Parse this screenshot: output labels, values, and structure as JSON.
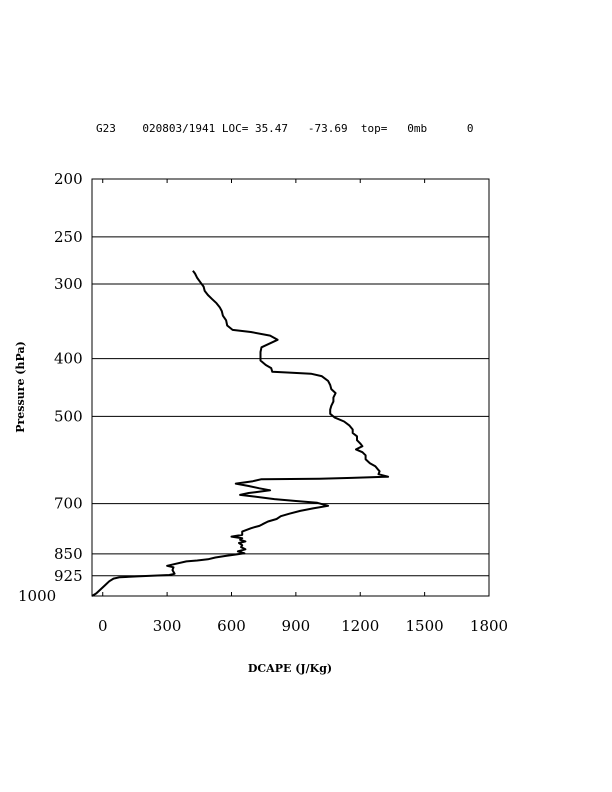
{
  "chart_data": {
    "type": "line",
    "title": "G23    020803/1941 LOC= 35.47   -73.69  top=   0mb      0",
    "xlabel": "DCAPE (J/Kg)",
    "ylabel": "Pressure (hPa)",
    "xlim": [
      -50,
      1800
    ],
    "ylim": [
      1000,
      200
    ],
    "y_scale": "log",
    "x_ticks": [
      "0",
      "300",
      "600",
      "900",
      "1200",
      "1500",
      "1800"
    ],
    "x_tick_values": [
      0,
      300,
      600,
      900,
      1200,
      1500,
      1800
    ],
    "y_ticks": [
      "200",
      "250",
      "300",
      "400",
      "500",
      "700",
      "850",
      "925",
      "1000"
    ],
    "y_tick_values": [
      200,
      250,
      300,
      400,
      500,
      700,
      850,
      925,
      1000
    ],
    "grid": "horizontal",
    "series": [
      {
        "color": "#000000",
        "points": [
          [
            -50,
            1000
          ],
          [
            -30,
            990
          ],
          [
            -10,
            975
          ],
          [
            10,
            960
          ],
          [
            30,
            945
          ],
          [
            50,
            935
          ],
          [
            80,
            930
          ],
          [
            160,
            927
          ],
          [
            310,
            922
          ],
          [
            335,
            918
          ],
          [
            325,
            905
          ],
          [
            330,
            895
          ],
          [
            300,
            890
          ],
          [
            330,
            885
          ],
          [
            390,
            875
          ],
          [
            440,
            872
          ],
          [
            490,
            868
          ],
          [
            525,
            862
          ],
          [
            570,
            857
          ],
          [
            620,
            852
          ],
          [
            660,
            848
          ],
          [
            630,
            842
          ],
          [
            665,
            835
          ],
          [
            645,
            828
          ],
          [
            650,
            822
          ],
          [
            635,
            815
          ],
          [
            665,
            810
          ],
          [
            640,
            805
          ],
          [
            650,
            800
          ],
          [
            600,
            795
          ],
          [
            650,
            790
          ],
          [
            650,
            780
          ],
          [
            690,
            770
          ],
          [
            705,
            767
          ],
          [
            730,
            763
          ],
          [
            745,
            758
          ],
          [
            770,
            750
          ],
          [
            810,
            743
          ],
          [
            830,
            735
          ],
          [
            870,
            728
          ],
          [
            920,
            720
          ],
          [
            980,
            713
          ],
          [
            1050,
            706
          ],
          [
            1000,
            698
          ],
          [
            900,
            693
          ],
          [
            800,
            688
          ],
          [
            690,
            680
          ],
          [
            640,
            677
          ],
          [
            680,
            672
          ],
          [
            710,
            670
          ],
          [
            780,
            665
          ],
          [
            730,
            660
          ],
          [
            680,
            654
          ],
          [
            620,
            648
          ],
          [
            700,
            642
          ],
          [
            740,
            637
          ],
          [
            1010,
            636
          ],
          [
            1160,
            634
          ],
          [
            1330,
            631
          ],
          [
            1285,
            625
          ],
          [
            1290,
            618
          ],
          [
            1280,
            612
          ],
          [
            1270,
            606
          ],
          [
            1245,
            599
          ],
          [
            1225,
            590
          ],
          [
            1225,
            581
          ],
          [
            1210,
            574
          ],
          [
            1180,
            568
          ],
          [
            1210,
            561
          ],
          [
            1200,
            555
          ],
          [
            1185,
            548
          ],
          [
            1185,
            540
          ],
          [
            1165,
            533
          ],
          [
            1165,
            526
          ],
          [
            1150,
            518
          ],
          [
            1125,
            510
          ],
          [
            1080,
            502
          ],
          [
            1060,
            495
          ],
          [
            1060,
            487
          ],
          [
            1065,
            480
          ],
          [
            1075,
            472
          ],
          [
            1075,
            465
          ],
          [
            1085,
            457
          ],
          [
            1065,
            450
          ],
          [
            1060,
            443
          ],
          [
            1050,
            436
          ],
          [
            1020,
            428
          ],
          [
            970,
            424
          ],
          [
            860,
            422
          ],
          [
            790,
            421
          ],
          [
            785,
            415
          ],
          [
            760,
            410
          ],
          [
            735,
            403
          ],
          [
            735,
            397
          ],
          [
            735,
            390
          ],
          [
            740,
            383
          ],
          [
            815,
            372
          ],
          [
            780,
            366
          ],
          [
            690,
            361
          ],
          [
            605,
            358
          ],
          [
            580,
            352
          ],
          [
            575,
            345
          ],
          [
            560,
            339
          ],
          [
            555,
            333
          ],
          [
            545,
            328
          ],
          [
            530,
            323
          ],
          [
            510,
            318
          ],
          [
            490,
            313
          ],
          [
            475,
            308
          ],
          [
            470,
            303
          ],
          [
            455,
            298
          ],
          [
            440,
            293
          ],
          [
            430,
            288
          ],
          [
            420,
            285
          ]
        ]
      }
    ]
  }
}
